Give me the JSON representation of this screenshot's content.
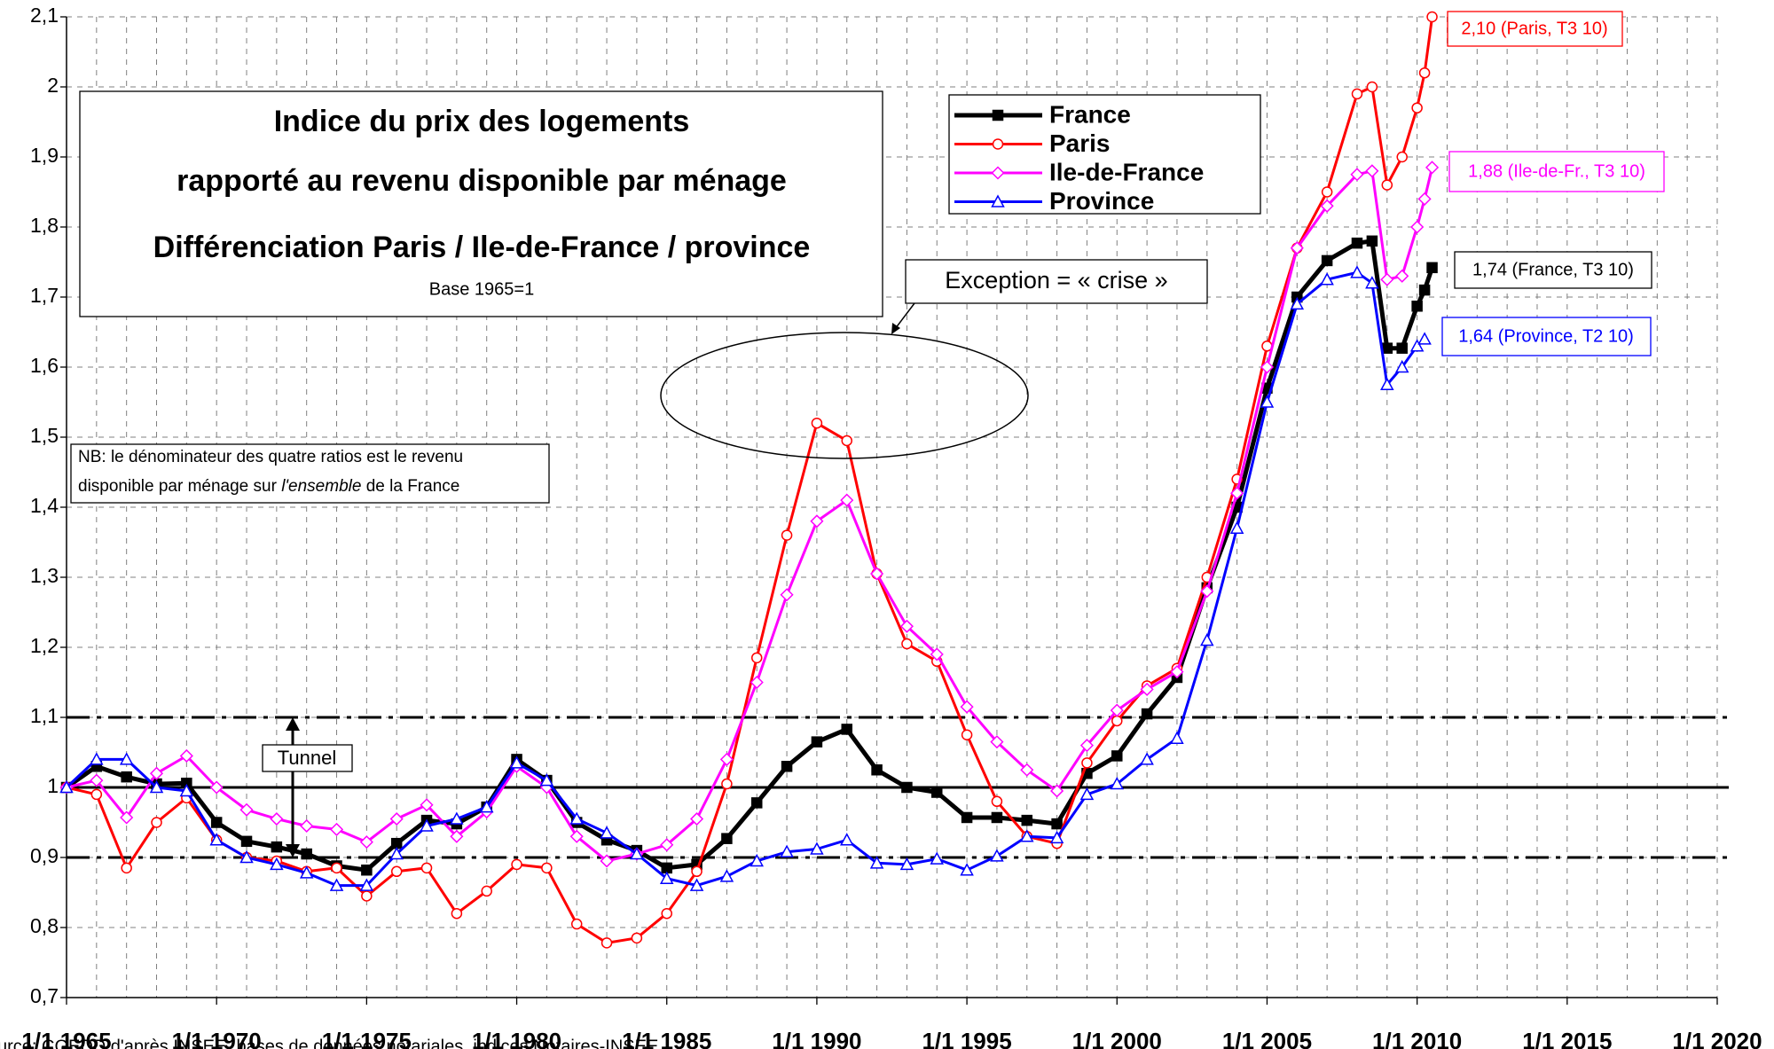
{
  "chart_data": {
    "type": "line",
    "title": [
      "Indice du prix des logements",
      "rapporté au revenu disponible par ménage",
      "Différenciation Paris / Ile-de-France / province"
    ],
    "subtitle": "Base 1965=1",
    "note": [
      "NB: le dénominateur des quatre ratios est le revenu",
      "disponible par ménage sur ",
      "l'ensemble",
      " de la France"
    ],
    "annotations": {
      "crisis": "Exception = « crise »",
      "tunnel": "Tunnel",
      "end_labels": [
        "1,74 (France, T3 10)",
        "2,10 (Paris, T3 10)",
        "1,88 (Ile-de-Fr., T3 10)",
        "1,64 (Province, T2 10)"
      ]
    },
    "source": "urce: CGEDD d'après INSEE, bases de données notariales, indices Notaires-INSEE",
    "x": [
      1965,
      1966,
      1967,
      1968,
      1969,
      1970,
      1971,
      1972,
      1973,
      1974,
      1975,
      1976,
      1977,
      1978,
      1979,
      1980,
      1981,
      1982,
      1983,
      1984,
      1985,
      1986,
      1987,
      1988,
      1989,
      1990,
      1991,
      1992,
      1993,
      1994,
      1995,
      1996,
      1997,
      1998,
      1999,
      2000,
      2001,
      2002,
      2003,
      2004,
      2005,
      2006,
      2007,
      2008,
      2008.5,
      2009,
      2009.5,
      2010,
      2010.25,
      2010.5
    ],
    "series": [
      {
        "name": "France",
        "color": "#000000",
        "marker": "square",
        "values": [
          1.0,
          1.03,
          1.015,
          1.005,
          1.006,
          0.95,
          0.923,
          0.915,
          0.905,
          0.888,
          0.882,
          0.92,
          0.953,
          0.948,
          0.972,
          1.04,
          1.01,
          0.95,
          0.925,
          0.91,
          0.885,
          0.89,
          0.927,
          0.978,
          1.03,
          1.065,
          1.083,
          1.025,
          1.0,
          0.993,
          0.957,
          0.957,
          0.953,
          0.948,
          1.02,
          1.045,
          1.105,
          1.157,
          1.285,
          1.4,
          1.57,
          1.7,
          1.752,
          1.777,
          1.78,
          1.627,
          1.627,
          1.687,
          1.71,
          1.742
        ]
      },
      {
        "name": "Paris",
        "color": "#ff0000",
        "marker": "circle",
        "values": [
          1.0,
          0.99,
          0.885,
          0.95,
          0.985,
          0.925,
          0.9,
          0.895,
          0.88,
          0.885,
          0.845,
          0.88,
          0.885,
          0.82,
          0.852,
          0.89,
          0.885,
          0.805,
          0.778,
          0.785,
          0.82,
          0.88,
          1.005,
          1.185,
          1.36,
          1.52,
          1.495,
          1.305,
          1.205,
          1.18,
          1.075,
          0.98,
          0.93,
          0.92,
          1.035,
          1.095,
          1.145,
          1.17,
          1.3,
          1.44,
          1.63,
          1.77,
          1.85,
          1.99,
          2.0,
          1.86,
          1.9,
          1.97,
          2.02,
          2.1
        ]
      },
      {
        "name": "Ile-de-France",
        "color": "#ff00ff",
        "marker": "diamond",
        "values": [
          1.0,
          1.01,
          0.957,
          1.02,
          1.045,
          1.0,
          0.968,
          0.955,
          0.945,
          0.94,
          0.922,
          0.955,
          0.975,
          0.93,
          0.965,
          1.03,
          1.0,
          0.93,
          0.895,
          0.905,
          0.918,
          0.955,
          1.04,
          1.15,
          1.275,
          1.38,
          1.41,
          1.305,
          1.23,
          1.19,
          1.115,
          1.065,
          1.025,
          0.995,
          1.06,
          1.11,
          1.14,
          1.165,
          1.28,
          1.42,
          1.6,
          1.77,
          1.83,
          1.875,
          1.88,
          1.725,
          1.73,
          1.8,
          1.84,
          1.885
        ]
      },
      {
        "name": "Province",
        "color": "#0000ff",
        "marker": "triangle",
        "values": [
          1.0,
          1.04,
          1.04,
          1.0,
          0.995,
          0.925,
          0.9,
          0.89,
          0.878,
          0.86,
          0.86,
          0.905,
          0.945,
          0.955,
          0.972,
          1.035,
          1.01,
          0.955,
          0.935,
          0.905,
          0.87,
          0.86,
          0.873,
          0.895,
          0.908,
          0.912,
          0.925,
          0.892,
          0.89,
          0.898,
          0.882,
          0.902,
          0.93,
          0.928,
          0.99,
          1.005,
          1.04,
          1.07,
          1.21,
          1.37,
          1.55,
          1.69,
          1.725,
          1.735,
          1.72,
          1.575,
          1.6,
          1.63,
          1.64,
          null
        ]
      }
    ],
    "reference_lines": [
      {
        "value": 1.1,
        "style": "dashdot"
      },
      {
        "value": 1,
        "style": "solid"
      },
      {
        "value": 0.9,
        "style": "dashdot"
      }
    ],
    "xlim": [
      1965,
      2020
    ],
    "xticks": [
      {
        "value": 1965,
        "label": "1/1 1965"
      },
      {
        "value": 1970,
        "label": "1/1 1970"
      },
      {
        "value": 1975,
        "label": "1/1 1975"
      },
      {
        "value": 1980,
        "label": "1/1 1980"
      },
      {
        "value": 1985,
        "label": "1/1 1985"
      },
      {
        "value": 1990,
        "label": "1/1 1990"
      },
      {
        "value": 1995,
        "label": "1/1 1995"
      },
      {
        "value": 2000,
        "label": "1/1 2000"
      },
      {
        "value": 2005,
        "label": "1/1 2005"
      },
      {
        "value": 2010,
        "label": "1/1 2010"
      },
      {
        "value": 2015,
        "label": "1/1 2015"
      },
      {
        "value": 2020,
        "label": "1/1 2020"
      }
    ],
    "xminorticks": [
      1966,
      1967,
      1968,
      1969,
      1971,
      1972,
      1973,
      1974,
      1976,
      1977,
      1978,
      1979,
      1981,
      1982,
      1983,
      1984,
      1986,
      1987,
      1988,
      1989,
      1991,
      1992,
      1993,
      1994,
      1996,
      1997,
      1998,
      1999,
      2001,
      2002,
      2003,
      2004,
      2006,
      2007,
      2008,
      2009,
      2011,
      2012,
      2013,
      2014,
      2016,
      2017,
      2018,
      2019
    ],
    "ylim": [
      0.7,
      2.1
    ],
    "yticks": [
      {
        "value": 0.7,
        "label": "0,7"
      },
      {
        "value": 0.8,
        "label": "0,8"
      },
      {
        "value": 0.9,
        "label": "0,9"
      },
      1,
      {
        "value": 1.1,
        "label": "1,1"
      },
      {
        "value": 1.2,
        "label": "1,2"
      },
      {
        "value": 1.3,
        "label": "1,3"
      },
      {
        "value": 1.4,
        "label": "1,4"
      },
      {
        "value": 1.5,
        "label": "1,5"
      },
      {
        "value": 1.6,
        "label": "1,6"
      },
      {
        "value": 1.7,
        "label": "1,7"
      },
      {
        "value": 1.8,
        "label": "1,8"
      },
      {
        "value": 1.9,
        "label": "1,9"
      },
      2,
      {
        "value": 2.1,
        "label": "2,1"
      }
    ],
    "grid": true
  }
}
